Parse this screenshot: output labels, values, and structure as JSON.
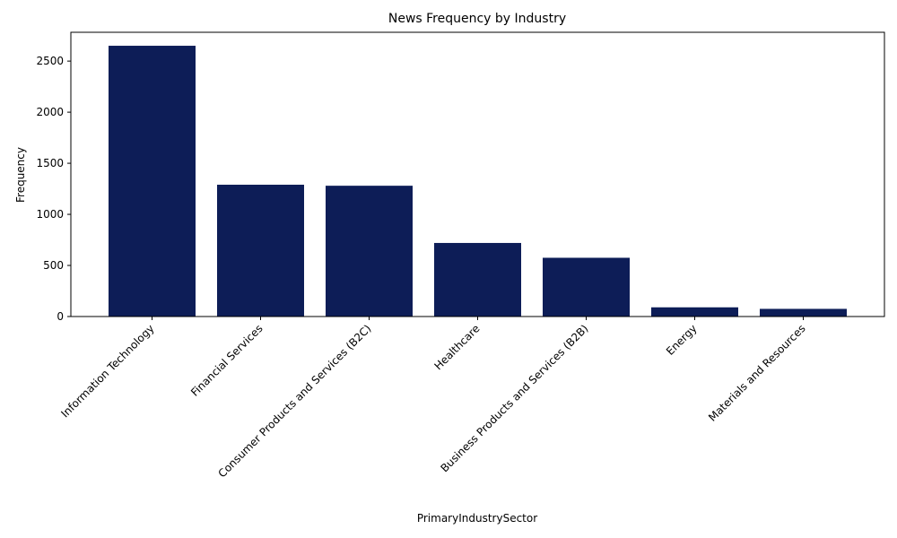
{
  "chart_data": {
    "type": "bar",
    "title": "News Frequency by Industry",
    "xlabel": "PrimaryIndustrySector",
    "ylabel": "Frequency",
    "categories": [
      "Information Technology",
      "Financial Services",
      "Consumer Products and Services (B2C)",
      "Healthcare",
      "Business Products and Services (B2B)",
      "Energy",
      "Materials and Resources"
    ],
    "values": [
      2650,
      1290,
      1280,
      720,
      575,
      90,
      75
    ],
    "ylim": [
      0,
      2650
    ],
    "yticks": [
      0,
      500,
      1000,
      1500,
      2000,
      2500
    ],
    "grid": false,
    "legend": "none",
    "bar_color": "#0d1d57"
  }
}
